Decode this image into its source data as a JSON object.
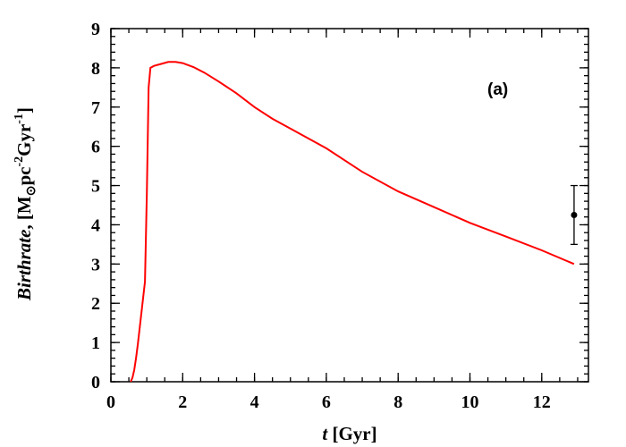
{
  "chart_data": {
    "type": "line",
    "panel_label": "(a)",
    "xlabel": {
      "var": "t",
      "unit": " [Gyr]"
    },
    "ylabel": {
      "var": "Birthrate",
      "text": ", [M",
      "sub": "⊙",
      "mid": "pc",
      "sup1": "-2",
      "mid2": "Gyr",
      "sup2": "-1",
      "end": "]"
    },
    "xlim": [
      0,
      13.3
    ],
    "ylim": [
      0,
      9
    ],
    "x_ticks": [
      0,
      2,
      4,
      6,
      8,
      10,
      12
    ],
    "y_ticks": [
      0,
      1,
      2,
      3,
      4,
      5,
      6,
      7,
      8,
      9
    ],
    "x_minor_step": 0.5,
    "y_minor_step": 0.2,
    "grid": false,
    "series": [
      {
        "color": "#ff0000",
        "points": [
          [
            0.55,
            0.0
          ],
          [
            0.6,
            0.1
          ],
          [
            0.65,
            0.3
          ],
          [
            0.7,
            0.6
          ],
          [
            0.75,
            0.95
          ],
          [
            0.8,
            1.35
          ],
          [
            0.85,
            1.75
          ],
          [
            0.9,
            2.15
          ],
          [
            0.95,
            2.55
          ],
          [
            1.0,
            4.8
          ],
          [
            1.05,
            7.5
          ],
          [
            1.1,
            8.0
          ],
          [
            1.2,
            8.05
          ],
          [
            1.4,
            8.1
          ],
          [
            1.6,
            8.15
          ],
          [
            1.8,
            8.15
          ],
          [
            2.0,
            8.12
          ],
          [
            2.3,
            8.02
          ],
          [
            2.6,
            7.88
          ],
          [
            3.0,
            7.65
          ],
          [
            3.5,
            7.35
          ],
          [
            4.0,
            7.0
          ],
          [
            4.5,
            6.7
          ],
          [
            5.0,
            6.45
          ],
          [
            6.0,
            5.95
          ],
          [
            7.0,
            5.35
          ],
          [
            8.0,
            4.85
          ],
          [
            9.0,
            4.45
          ],
          [
            10.0,
            4.05
          ],
          [
            11.0,
            3.7
          ],
          [
            12.0,
            3.35
          ],
          [
            12.9,
            3.0
          ]
        ]
      }
    ],
    "observation": {
      "x": 12.9,
      "y": 4.25,
      "y_low": 3.5,
      "y_high": 5.0,
      "color": "#000000"
    }
  }
}
